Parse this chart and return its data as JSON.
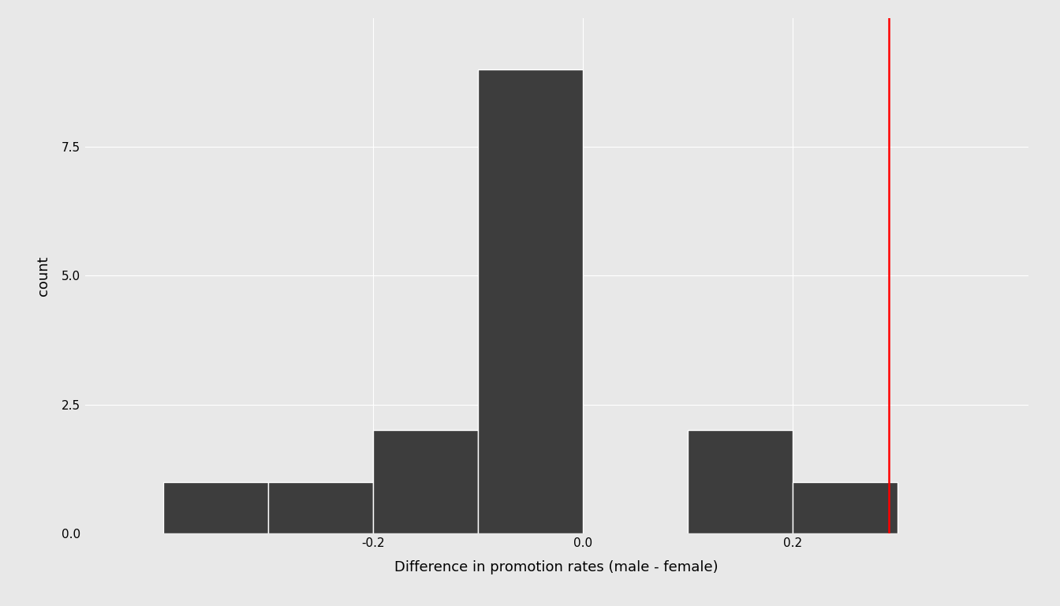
{
  "bar_lefts": [
    -0.4,
    -0.3,
    -0.2,
    -0.1,
    0.0,
    0.1,
    0.2
  ],
  "bar_widths": [
    0.1,
    0.1,
    0.1,
    0.1,
    0.1,
    0.1,
    0.1
  ],
  "bar_heights": [
    1,
    1,
    2,
    9,
    0,
    2,
    1
  ],
  "bar_color": "#3d3d3d",
  "bar_edgecolor": "#ffffff",
  "bar_linewidth": 1.0,
  "vline_x": 0.292,
  "vline_color": "red",
  "vline_linewidth": 1.8,
  "xlabel": "Difference in promotion rates (male - female)",
  "ylabel": "count",
  "xlim": [
    -0.475,
    0.425
  ],
  "ylim": [
    0.0,
    10.0
  ],
  "yticks": [
    0.0,
    2.5,
    5.0,
    7.5
  ],
  "ytick_labels": [
    "0.0",
    "2.5",
    "5.0",
    "7.5"
  ],
  "xticks": [
    -0.2,
    0.0,
    0.2
  ],
  "xtick_labels": [
    "-0.2",
    "0.0",
    "0.2"
  ],
  "bg_color": "#e8e8e8",
  "grid_color": "#ffffff",
  "grid_linewidth": 0.8,
  "label_fontsize": 13,
  "tick_fontsize": 11,
  "font_family": "sans-serif"
}
